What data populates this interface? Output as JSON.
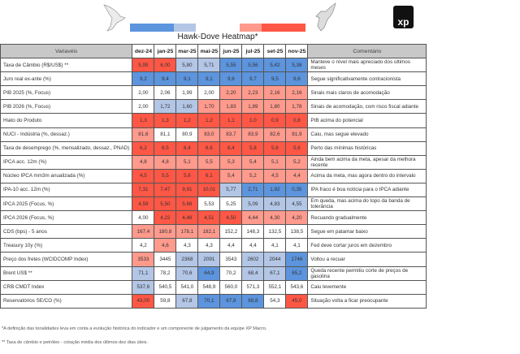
{
  "title": "Hawk-Dove Heatmap*",
  "logo": "xp",
  "colors": {
    "hawk_strong": "#ff5745",
    "hawk": "#ff9a8d",
    "dove_strong": "#5c94dd",
    "dove": "#b3c6e6",
    "neutral": "#ffffff"
  },
  "headers": {
    "variable": "Variavéis",
    "comment": "Comentário",
    "months": [
      "dez-24",
      "jan-25",
      "mar-25",
      "mai-25",
      "jun-25",
      "jul-25",
      "set-25",
      "nov-25"
    ]
  },
  "rows": [
    {
      "name": "Taxa de Câmbio (R$/US$) **",
      "values": [
        "5,95",
        "6,00",
        "5,80",
        "5,71",
        "5,55",
        "5,56",
        "5,42",
        "5,38"
      ],
      "tones": [
        "R",
        "R",
        "b",
        "b",
        "B",
        "B",
        "B",
        "B"
      ],
      "comment": "Manteve o nível mais apreciado dos últimos meses"
    },
    {
      "name": "Juro real ex-ante (%)",
      "values": [
        "9,2",
        "9,4",
        "9,1",
        "9,1",
        "9,6",
        "9,7",
        "9,5",
        "9,6"
      ],
      "tones": [
        "B",
        "B",
        "B",
        "B",
        "B",
        "B",
        "B",
        "B"
      ],
      "comment": "Segue significativamente contracionista"
    },
    {
      "name": "PIB 2025 (%, Focus)",
      "values": [
        "2,00",
        "2,06",
        "1,99",
        "2,00",
        "2,20",
        "2,23",
        "2,16",
        "2,16"
      ],
      "tones": [
        "w",
        "w",
        "w",
        "w",
        "r",
        "r",
        "r",
        "r"
      ],
      "comment": "Sinais mais claros de acomodação"
    },
    {
      "name": "PIB 2026 (%, Focus)",
      "values": [
        "2,00",
        "1,72",
        "1,60",
        "1,70",
        "1,83",
        "1,89",
        "1,80",
        "1,78"
      ],
      "tones": [
        "w",
        "b",
        "b",
        "r",
        "r",
        "r",
        "r",
        "r"
      ],
      "comment": "Sinais de acomodação, com risco fiscal adiante"
    },
    {
      "name": "Hiato do Produto",
      "values": [
        "1,3",
        "1,3",
        "1,2",
        "1,2",
        "1,1",
        "1,0",
        "0,9",
        "0,8"
      ],
      "tones": [
        "R",
        "R",
        "R",
        "R",
        "R",
        "R",
        "R",
        "R"
      ],
      "comment": "PIB acima do potencial"
    },
    {
      "name": "NUCI - Indústria (%, dessaz.)",
      "values": [
        "81,6",
        "81,1",
        "80,9",
        "83,0",
        "83,7",
        "83,9",
        "82,6",
        "81,9"
      ],
      "tones": [
        "r",
        "w",
        "w",
        "r",
        "r",
        "r",
        "r",
        "r"
      ],
      "comment": "Caiu, mas segue elevado"
    },
    {
      "name": "Taxa de desemprego (%, mensalizado, dessaz., PNAD)",
      "values": [
        "6,2",
        "6,5",
        "6,4",
        "6,6",
        "6,4",
        "5,8",
        "5,6",
        "5,6"
      ],
      "tones": [
        "R",
        "R",
        "R",
        "R",
        "R",
        "R",
        "R",
        "R"
      ],
      "comment": "Perto das mínimas históricas"
    },
    {
      "name": "IPCA acc. 12m (%)",
      "values": [
        "4,8",
        "4,8",
        "5,1",
        "5,5",
        "5,3",
        "5,4",
        "5,1",
        "5,2"
      ],
      "tones": [
        "r",
        "r",
        "r",
        "r",
        "r",
        "r",
        "r",
        "r"
      ],
      "comment": "Ainda bem acima da meta, apesar da melhora recente"
    },
    {
      "name": "Núcleo IPCA mm3m anualizada (%)",
      "values": [
        "4,5",
        "5,5",
        "5,6",
        "6,1",
        "5,4",
        "5,2",
        "4,5",
        "4,4"
      ],
      "tones": [
        "R",
        "R",
        "R",
        "R",
        "r",
        "r",
        "r",
        "r"
      ],
      "comment": "Acima da meta, mas agora dentro do intervalo"
    },
    {
      "name": "IPA-10 acc. 12m (%)",
      "values": [
        "7,31",
        "7,47",
        "9,91",
        "10,01",
        "5,77",
        "2,71",
        "1,92",
        "0,35"
      ],
      "tones": [
        "R",
        "R",
        "R",
        "R",
        "b",
        "B",
        "B",
        "B"
      ],
      "comment": "IPA fraco é boa notícia para o IPCA adiante"
    },
    {
      "name": "IPCA 2025 (Focus, %)",
      "values": [
        "4,59",
        "5,50",
        "5,66",
        "5,53",
        "5,25",
        "5,09",
        "4,83",
        "4,55"
      ],
      "tones": [
        "R",
        "R",
        "R",
        "w",
        "w",
        "b",
        "b",
        "b"
      ],
      "comment": "Em queda, mas acima do topo da banda de tolerância"
    },
    {
      "name": "IPCA 2026 (Focus, %)",
      "values": [
        "4,00",
        "4,22",
        "4,48",
        "4,51",
        "4,50",
        "4,44",
        "4,30",
        "4,20"
      ],
      "tones": [
        "w",
        "R",
        "R",
        "R",
        "R",
        "r",
        "r",
        "r"
      ],
      "comment": "Recuando gradualmente"
    },
    {
      "name": "CDS (bps) - 5 anos",
      "values": [
        "167,4",
        "180,8",
        "178,1",
        "182,1",
        "152,2",
        "148,3",
        "132,5",
        "138,5"
      ],
      "tones": [
        "r",
        "r",
        "r",
        "r",
        "w",
        "w",
        "w",
        "w"
      ],
      "comment": "Segue em patamar baixo"
    },
    {
      "name": "Treasury 10y (%)",
      "values": [
        "4,2",
        "4,6",
        "4,3",
        "4,3",
        "4,4",
        "4,4",
        "4,1",
        "4,1"
      ],
      "tones": [
        "w",
        "r",
        "w",
        "w",
        "w",
        "w",
        "w",
        "w"
      ],
      "comment": "Fed deve cortar juros em dezembro"
    },
    {
      "name": "Preço dos fretes (WCIDCOMP Index)",
      "values": [
        "3533",
        "3445",
        "2368",
        "2091",
        "3543",
        "2602",
        "2044",
        "1746"
      ],
      "tones": [
        "r",
        "w",
        "b",
        "b",
        "w",
        "b",
        "b",
        "B"
      ],
      "comment": "Voltou a recuar"
    },
    {
      "name": "Brent US$ **",
      "values": [
        "71,1",
        "78,2",
        "70,6",
        "64,9",
        "70,2",
        "68,4",
        "67,1",
        "65,2"
      ],
      "tones": [
        "b",
        "w",
        "b",
        "B",
        "w",
        "b",
        "b",
        "B"
      ],
      "comment": "Queda recente permitiu corte de preços de gasolina"
    },
    {
      "name": "CRB CMDT Index",
      "values": [
        "537,6",
        "540,5",
        "541,0",
        "548,9",
        "560,0",
        "571,3",
        "552,1",
        "543,6"
      ],
      "tones": [
        "b",
        "w",
        "w",
        "w",
        "w",
        "w",
        "w",
        "w"
      ],
      "comment": "Caiu levemente"
    },
    {
      "name": "Reservatórios SE/CO (%)",
      "values": [
        "43,00",
        "59,8",
        "67,8",
        "70,1",
        "67,8",
        "68,8",
        "54,3",
        "45,0"
      ],
      "tones": [
        "R",
        "w",
        "b",
        "B",
        "B",
        "B",
        "w",
        "R"
      ],
      "comment": "Situação volta a ficar preocupante"
    }
  ],
  "notes": [
    "*A definição das tonalidades leva em conta a evolução histórica do indicador e um componente de julgamento da equipe XP Macro.",
    "** Taxa de câmbio e petróleo - cotação média dos últimos dez dias úteis."
  ]
}
